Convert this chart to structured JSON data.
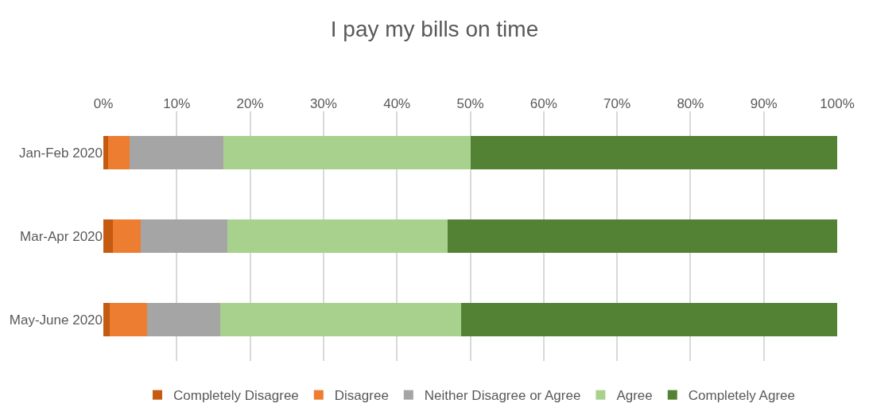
{
  "chart_data": {
    "type": "bar",
    "title": "I pay my bills on time",
    "orientation": "horizontal",
    "stacked": true,
    "categories": [
      "Jan-Feb 2020",
      "Mar-Apr 2020",
      "May-June 2020"
    ],
    "series": [
      {
        "name": "Completely Disagree",
        "color": "#c55a11",
        "values": [
          0.6,
          1.3,
          0.9
        ]
      },
      {
        "name": "Disagree",
        "color": "#ed7d31",
        "values": [
          3.0,
          3.8,
          5.1
        ]
      },
      {
        "name": "Neither Disagree or Agree",
        "color": "#a5a5a5",
        "values": [
          12.8,
          11.8,
          9.9
        ]
      },
      {
        "name": "Agree",
        "color": "#a9d18e",
        "values": [
          33.6,
          30.0,
          32.9
        ]
      },
      {
        "name": "Completely Agree",
        "color": "#548235",
        "values": [
          50.0,
          53.1,
          51.2
        ]
      }
    ],
    "xlim": [
      0,
      100
    ],
    "xticks": [
      {
        "value": 0,
        "label": "0%"
      },
      {
        "value": 10,
        "label": "10%"
      },
      {
        "value": 20,
        "label": "20%"
      },
      {
        "value": 30,
        "label": "30%"
      },
      {
        "value": 40,
        "label": "40%"
      },
      {
        "value": 50,
        "label": "50%"
      },
      {
        "value": 60,
        "label": "60%"
      },
      {
        "value": 70,
        "label": "70%"
      },
      {
        "value": 80,
        "label": "80%"
      },
      {
        "value": 90,
        "label": "90%"
      },
      {
        "value": 100,
        "label": "100%"
      }
    ],
    "grid": "x",
    "legend": "bottom"
  }
}
